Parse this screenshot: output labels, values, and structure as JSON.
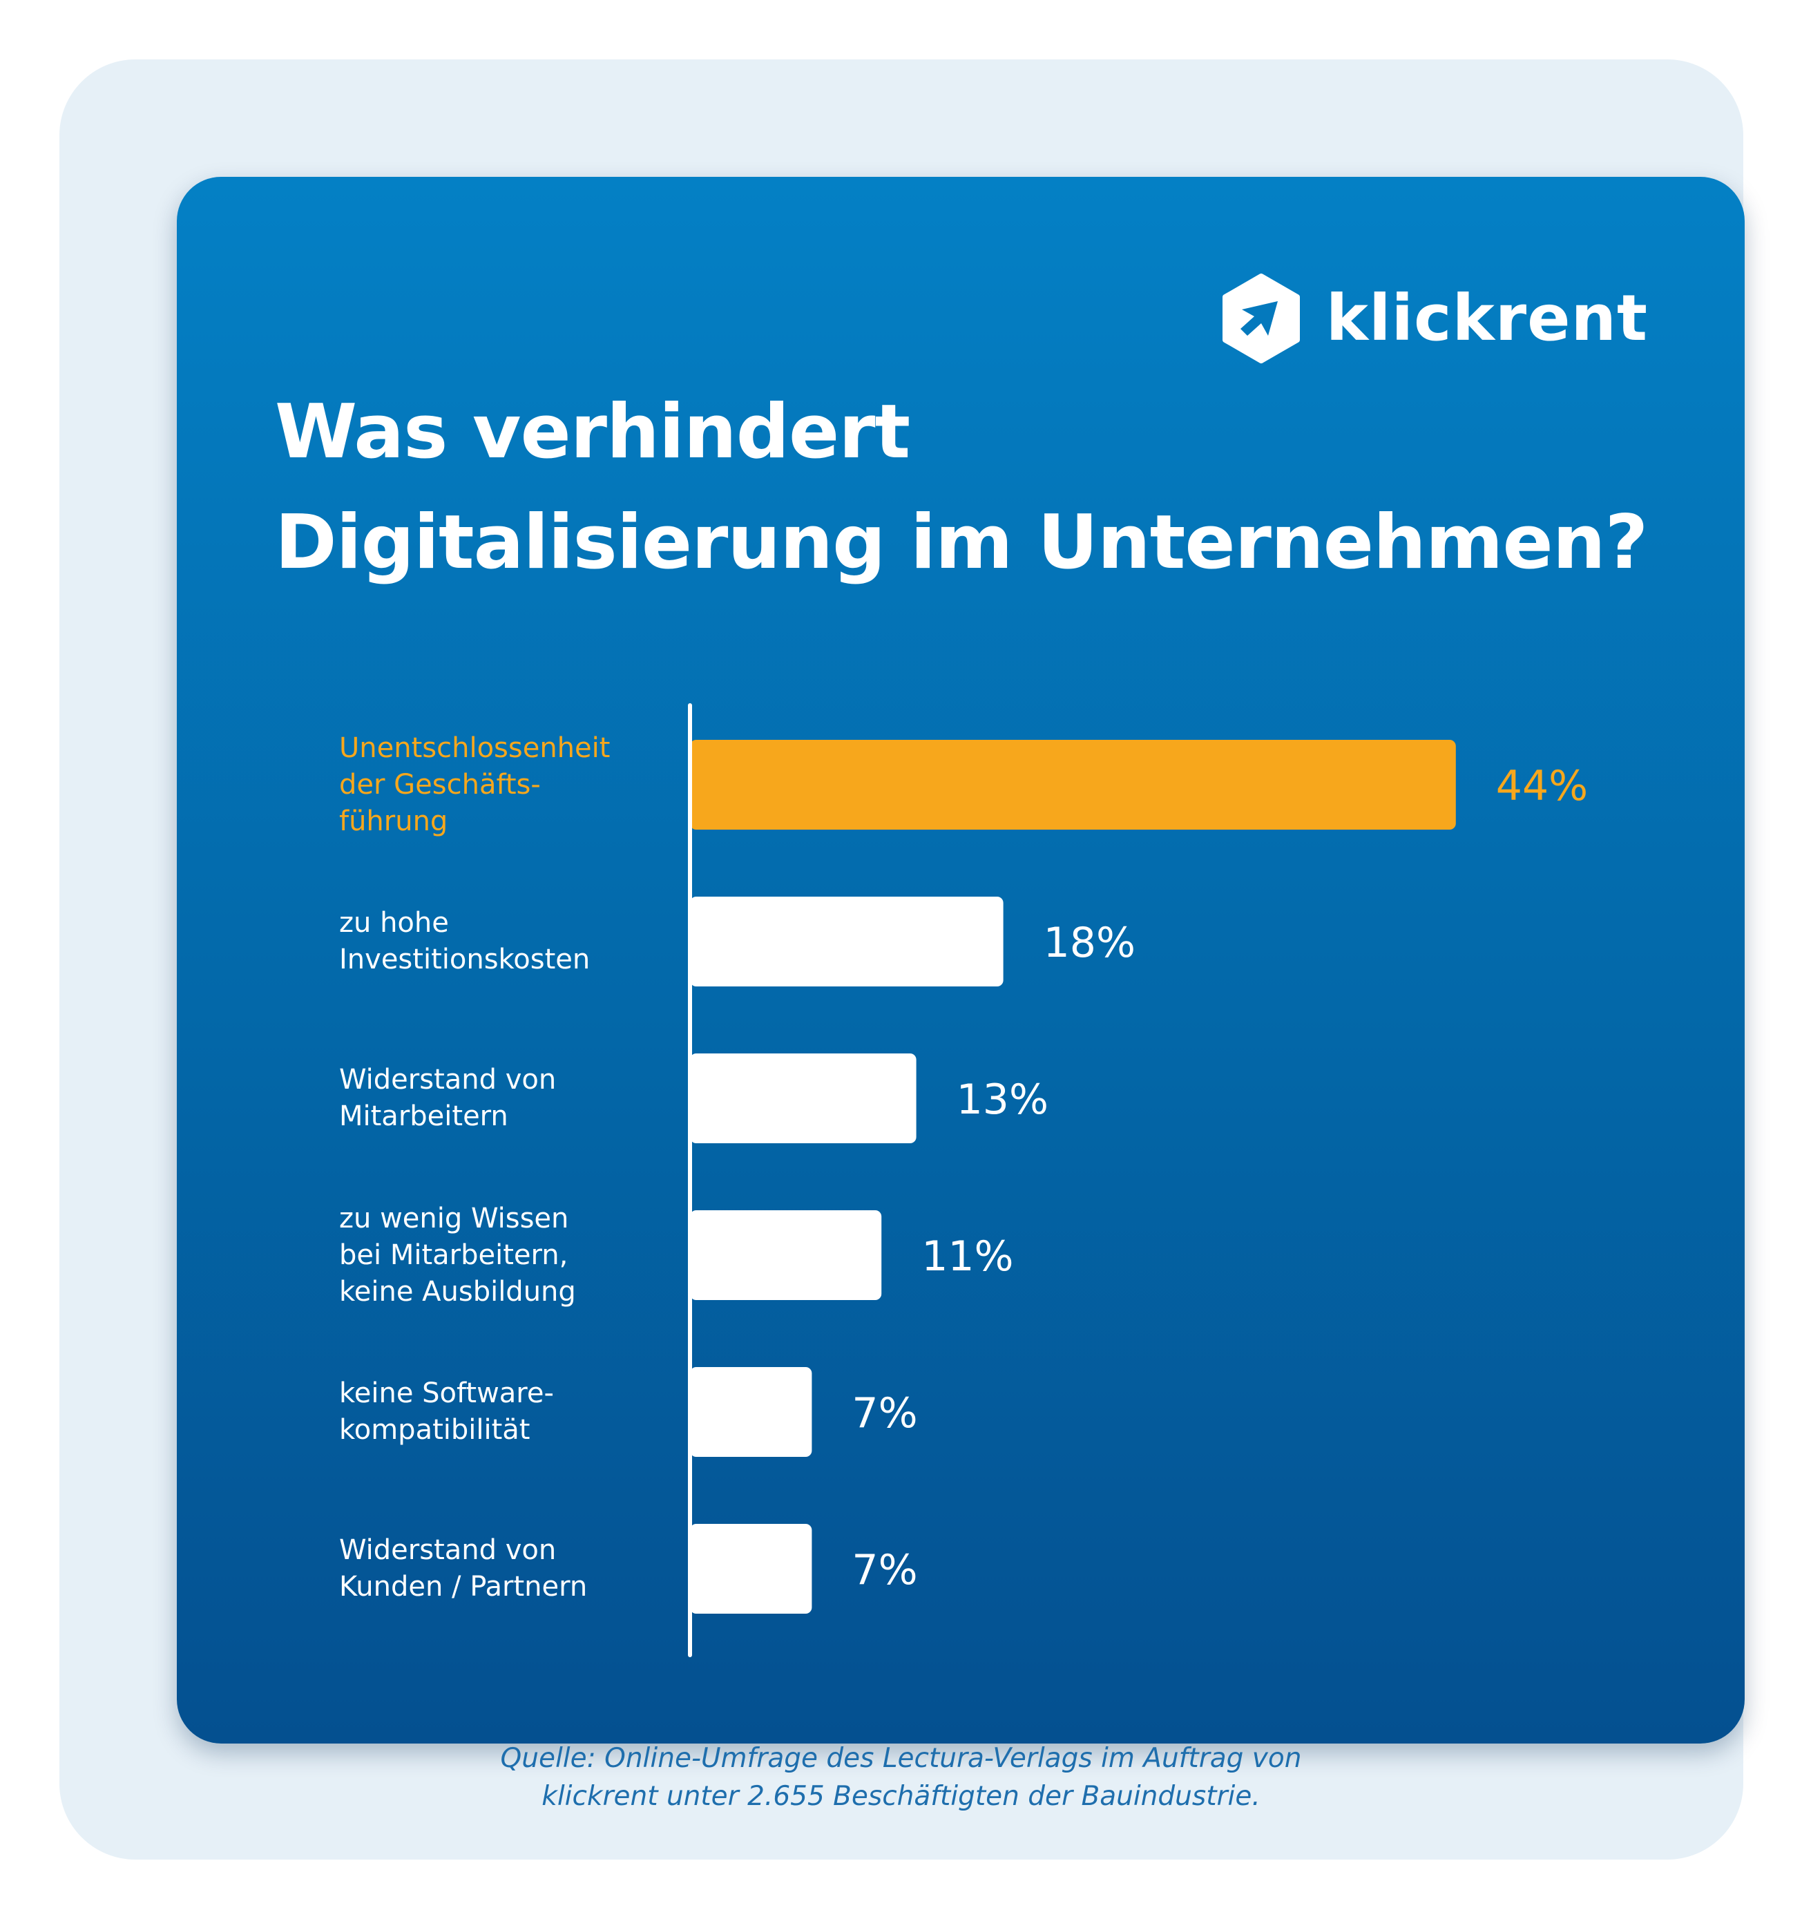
{
  "brand": {
    "name": "klickrent",
    "logo_icon": "hexagon-arrow-icon",
    "colors": {
      "background": "#0478bd",
      "highlight": "#f7a71c",
      "bar": "#ffffff",
      "source_text": "#1e6ead"
    }
  },
  "title": "Was verhindert\nDigitalisierung im Unternehmen?",
  "source": "Quelle: Online-Umfrage des Lectura-Verlags im Auftrag von\nklickrent unter 2.655 Beschäftigten der Bauindustrie.",
  "chart_data": {
    "type": "bar",
    "orientation": "horizontal",
    "title": "Was verhindert Digitalisierung im Unternehmen?",
    "unit": "%",
    "xlim": [
      0,
      50
    ],
    "grid": false,
    "legend": "none",
    "categories": [
      "Unentschlossenheit\nder Geschäfts-\nführung",
      "zu hohe\nInvestitionskosten",
      "Widerstand von\nMitarbeitern",
      "zu wenig Wissen\nbei Mitarbeitern,\nkeine Ausbildung",
      "keine Software-\nkompatibilität",
      "Widerstand von\nKunden / Partnern"
    ],
    "values": [
      44,
      18,
      13,
      11,
      7,
      7
    ],
    "value_labels": [
      "44%",
      "18%",
      "13%",
      "11%",
      "7%",
      "7%"
    ],
    "highlight_index": 0
  }
}
